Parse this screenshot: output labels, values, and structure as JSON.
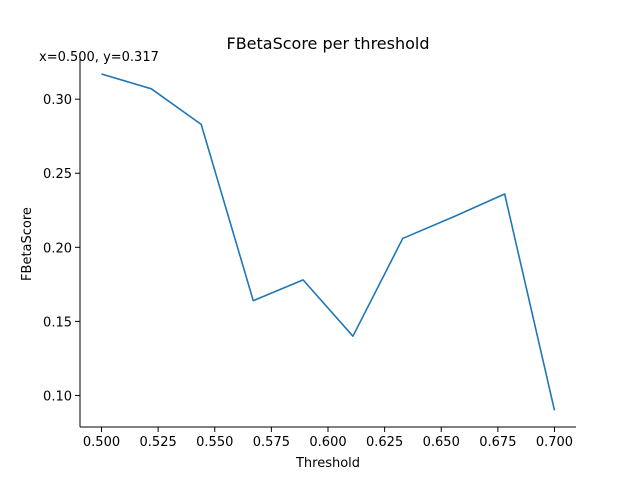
{
  "chart_data": {
    "type": "line",
    "title": "FBetaScore per threshold",
    "xlabel": "Threshold",
    "ylabel": "FBetaScore",
    "x": [
      0.5,
      0.522,
      0.544,
      0.567,
      0.589,
      0.611,
      0.633,
      0.656,
      0.678,
      0.7
    ],
    "series": [
      {
        "name": "FBetaScore",
        "values": [
          0.317,
          0.307,
          0.283,
          0.164,
          0.178,
          0.14,
          0.206,
          0.221,
          0.236,
          0.09
        ]
      }
    ],
    "xlim": [
      0.4905,
      0.7095
    ],
    "ylim": [
      0.0787,
      0.3278
    ],
    "xticks": [
      "0.500",
      "0.525",
      "0.550",
      "0.575",
      "0.600",
      "0.625",
      "0.650",
      "0.675",
      "0.700"
    ],
    "yticks": [
      "0.10",
      "0.15",
      "0.20",
      "0.25",
      "0.30"
    ],
    "line_color": "#1f77b4",
    "grid": false,
    "readout": "x=0.500, y=0.317"
  }
}
